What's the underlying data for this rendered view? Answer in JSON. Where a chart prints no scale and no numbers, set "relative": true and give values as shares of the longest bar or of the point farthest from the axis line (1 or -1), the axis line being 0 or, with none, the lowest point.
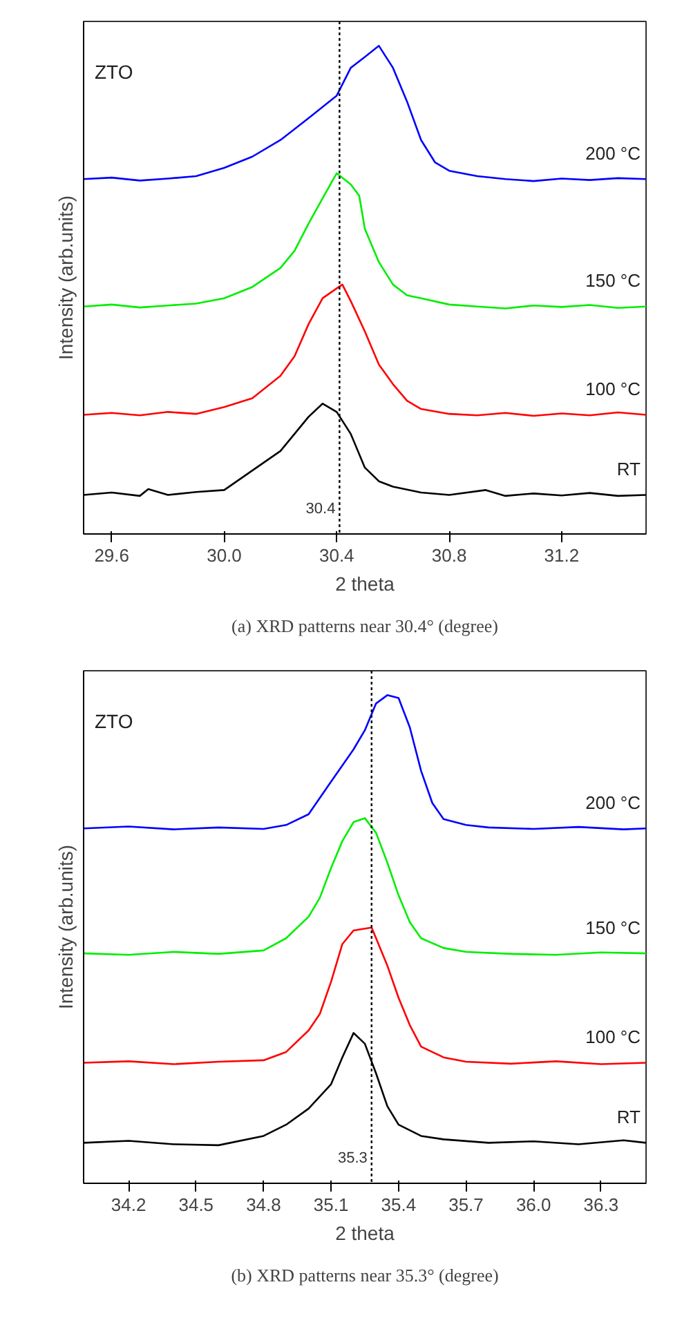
{
  "chart_data": [
    {
      "type": "line",
      "relative": true,
      "xlabel": "2 theta",
      "ylabel": "Intensity (arb.units)",
      "xlim": [
        29.5,
        31.5
      ],
      "xticks": [
        29.6,
        {
          "value": 30.0,
          "label": "30.0"
        },
        30.4,
        30.8,
        31.2
      ],
      "grid": false,
      "annotations": [
        "ZTO",
        "(a) XRD patterns near 30.4° (degree)"
      ],
      "ref_lines": [
        {
          "axis": "x",
          "value": 30.41,
          "label": "30.4",
          "color": "#000000",
          "line_style": "dotted"
        }
      ],
      "series": [
        {
          "name": "RT",
          "color": "#000000",
          "x": [
            29.5,
            29.6,
            29.7,
            29.73,
            29.8,
            29.9,
            30.0,
            30.1,
            30.2,
            30.3,
            30.35,
            30.4,
            30.45,
            30.5,
            30.55,
            30.6,
            30.7,
            30.8,
            30.93,
            31.0,
            31.1,
            31.2,
            31.3,
            31.4,
            31.5
          ],
          "values": [
            0.08,
            0.085,
            0.078,
            0.092,
            0.08,
            0.086,
            0.09,
            0.13,
            0.17,
            0.24,
            0.267,
            0.25,
            0.205,
            0.136,
            0.108,
            0.097,
            0.085,
            0.08,
            0.09,
            0.078,
            0.083,
            0.079,
            0.084,
            0.078,
            0.08
          ]
        },
        {
          "name": "100 °C",
          "color": "#ff0000",
          "x": [
            29.5,
            29.6,
            29.7,
            29.8,
            29.9,
            30.0,
            30.1,
            30.2,
            30.25,
            30.3,
            30.35,
            30.42,
            30.45,
            30.5,
            30.55,
            30.6,
            30.65,
            30.7,
            30.8,
            30.9,
            31.0,
            31.1,
            31.2,
            31.3,
            31.4,
            31.5
          ],
          "values": [
            0.244,
            0.248,
            0.243,
            0.25,
            0.246,
            0.26,
            0.278,
            0.324,
            0.364,
            0.43,
            0.483,
            0.511,
            0.477,
            0.415,
            0.347,
            0.307,
            0.273,
            0.256,
            0.246,
            0.243,
            0.248,
            0.242,
            0.247,
            0.243,
            0.249,
            0.244
          ]
        },
        {
          "name": "150 °C",
          "color": "#00ee00",
          "x": [
            29.5,
            29.6,
            29.7,
            29.8,
            29.9,
            30.0,
            30.1,
            30.2,
            30.25,
            30.3,
            30.35,
            30.4,
            30.45,
            30.48,
            30.5,
            30.55,
            30.6,
            30.65,
            30.7,
            30.8,
            30.9,
            31.0,
            31.1,
            31.2,
            31.3,
            31.4,
            31.5
          ],
          "values": [
            0.466,
            0.47,
            0.464,
            0.468,
            0.472,
            0.483,
            0.506,
            0.545,
            0.58,
            0.636,
            0.688,
            0.739,
            0.716,
            0.693,
            0.625,
            0.557,
            0.511,
            0.489,
            0.483,
            0.47,
            0.466,
            0.462,
            0.468,
            0.465,
            0.469,
            0.463,
            0.466
          ]
        },
        {
          "name": "200 °C",
          "color": "#0000ff",
          "x": [
            29.5,
            29.6,
            29.7,
            29.8,
            29.9,
            30.0,
            30.1,
            30.2,
            30.3,
            30.35,
            30.4,
            30.45,
            30.5,
            30.55,
            30.6,
            30.65,
            30.7,
            30.75,
            30.8,
            30.9,
            31.0,
            31.1,
            31.2,
            31.3,
            31.4,
            31.5
          ],
          "values": [
            0.727,
            0.73,
            0.724,
            0.728,
            0.733,
            0.75,
            0.773,
            0.807,
            0.852,
            0.875,
            0.898,
            0.955,
            0.977,
            1.0,
            0.955,
            0.886,
            0.807,
            0.761,
            0.744,
            0.733,
            0.727,
            0.723,
            0.728,
            0.725,
            0.729,
            0.727
          ]
        }
      ]
    },
    {
      "type": "line",
      "relative": true,
      "xlabel": "2 theta",
      "ylabel": "Intensity (arb.units)",
      "xlim": [
        34.0,
        36.5
      ],
      "xticks": [
        34.2,
        34.5,
        34.8,
        35.1,
        35.4,
        35.7,
        {
          "value": 36.0,
          "label": "36.0"
        },
        36.3
      ],
      "grid": false,
      "annotations": [
        "ZTO",
        "(b) XRD patterns near 35.3° (degree)"
      ],
      "ref_lines": [
        {
          "axis": "x",
          "value": 35.28,
          "label": "35.3",
          "color": "#000000",
          "line_style": "dotted"
        }
      ],
      "series": [
        {
          "name": "RT",
          "color": "#000000",
          "x": [
            34.0,
            34.2,
            34.4,
            34.6,
            34.8,
            34.9,
            35.0,
            35.1,
            35.15,
            35.2,
            35.25,
            35.3,
            35.35,
            35.4,
            35.5,
            35.6,
            35.8,
            36.0,
            36.2,
            36.4,
            36.5
          ],
          "values": [
            0.083,
            0.087,
            0.08,
            0.078,
            0.097,
            0.12,
            0.153,
            0.203,
            0.258,
            0.308,
            0.286,
            0.225,
            0.158,
            0.12,
            0.097,
            0.09,
            0.083,
            0.086,
            0.08,
            0.088,
            0.083
          ]
        },
        {
          "name": "100 °C",
          "color": "#ff0000",
          "x": [
            34.0,
            34.2,
            34.4,
            34.6,
            34.8,
            34.9,
            35.0,
            35.05,
            35.1,
            35.15,
            35.2,
            35.28,
            35.3,
            35.35,
            35.4,
            35.45,
            35.5,
            35.6,
            35.7,
            35.9,
            36.1,
            36.3,
            36.5
          ],
          "values": [
            0.247,
            0.25,
            0.244,
            0.249,
            0.252,
            0.269,
            0.313,
            0.347,
            0.413,
            0.49,
            0.518,
            0.524,
            0.502,
            0.446,
            0.38,
            0.324,
            0.28,
            0.258,
            0.249,
            0.245,
            0.25,
            0.244,
            0.247
          ]
        },
        {
          "name": "150 °C",
          "color": "#00ee00",
          "x": [
            34.0,
            34.2,
            34.4,
            34.6,
            34.8,
            34.9,
            35.0,
            35.05,
            35.1,
            35.15,
            35.2,
            35.25,
            35.3,
            35.35,
            35.4,
            35.45,
            35.5,
            35.6,
            35.7,
            35.9,
            36.1,
            36.3,
            36.5
          ],
          "values": [
            0.471,
            0.468,
            0.474,
            0.47,
            0.477,
            0.502,
            0.546,
            0.585,
            0.646,
            0.701,
            0.74,
            0.748,
            0.718,
            0.657,
            0.59,
            0.535,
            0.502,
            0.482,
            0.474,
            0.47,
            0.468,
            0.473,
            0.471
          ]
        },
        {
          "name": "200 °C",
          "color": "#0000ff",
          "x": [
            34.0,
            34.2,
            34.4,
            34.6,
            34.8,
            34.9,
            35.0,
            35.1,
            35.2,
            35.25,
            35.3,
            35.35,
            35.4,
            35.45,
            35.5,
            35.55,
            35.6,
            35.7,
            35.8,
            36.0,
            36.2,
            36.4,
            36.5
          ],
          "values": [
            0.727,
            0.731,
            0.725,
            0.729,
            0.726,
            0.734,
            0.756,
            0.823,
            0.889,
            0.928,
            0.983,
            1.0,
            0.994,
            0.934,
            0.845,
            0.779,
            0.746,
            0.734,
            0.729,
            0.726,
            0.73,
            0.725,
            0.727
          ]
        }
      ]
    }
  ]
}
